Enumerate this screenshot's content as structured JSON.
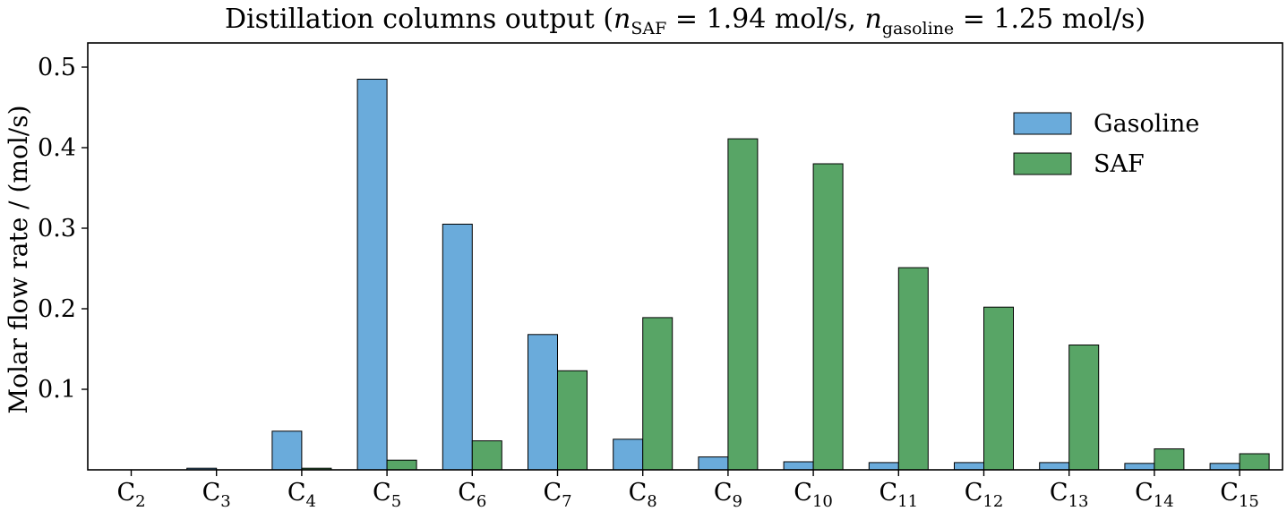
{
  "chart_data": {
    "type": "bar",
    "title": {
      "prefix": "Distillation columns output (",
      "n1": "n",
      "n1_sub": "SAF",
      "eq1": " = 1.94 mol/s,  ",
      "n2": "n",
      "n2_sub": "gasoline",
      "eq2": " = 1.25 mol/s)"
    },
    "ylabel": "Molar flow rate / (mol/s)",
    "xlabel": "",
    "categories": [
      {
        "base": "C",
        "sub": "2"
      },
      {
        "base": "C",
        "sub": "3"
      },
      {
        "base": "C",
        "sub": "4"
      },
      {
        "base": "C",
        "sub": "5"
      },
      {
        "base": "C",
        "sub": "6"
      },
      {
        "base": "C",
        "sub": "7"
      },
      {
        "base": "C",
        "sub": "8"
      },
      {
        "base": "C",
        "sub": "9"
      },
      {
        "base": "C",
        "sub": "10"
      },
      {
        "base": "C",
        "sub": "11"
      },
      {
        "base": "C",
        "sub": "12"
      },
      {
        "base": "C",
        "sub": "13"
      },
      {
        "base": "C",
        "sub": "14"
      },
      {
        "base": "C",
        "sub": "15"
      }
    ],
    "series": [
      {
        "name": "Gasoline",
        "color": "#6aabdb",
        "values": [
          0.0,
          0.002,
          0.048,
          0.485,
          0.305,
          0.168,
          0.038,
          0.016,
          0.01,
          0.009,
          0.009,
          0.009,
          0.008,
          0.008
        ]
      },
      {
        "name": "SAF",
        "color": "#58a566",
        "values": [
          0.0,
          0.0,
          0.002,
          0.012,
          0.036,
          0.123,
          0.189,
          0.411,
          0.38,
          0.251,
          0.202,
          0.155,
          0.026,
          0.02
        ]
      }
    ],
    "ylim": [
      0,
      0.53
    ],
    "yticks": [
      "0.1",
      "0.2",
      "0.3",
      "0.4",
      "0.5"
    ],
    "legend": "upper-right",
    "grid": false
  }
}
